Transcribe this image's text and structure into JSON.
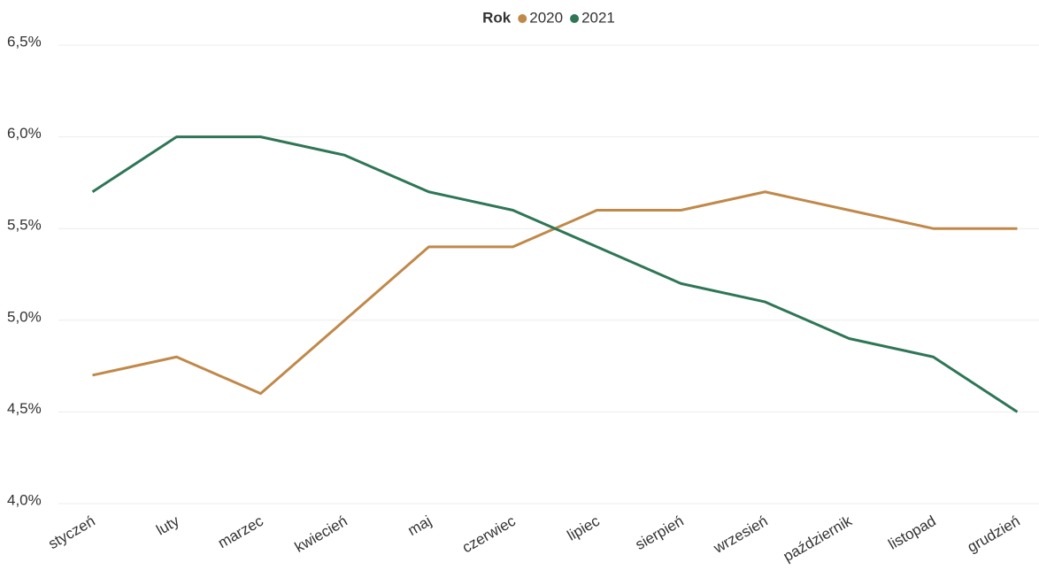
{
  "chart_data": {
    "type": "line",
    "legend_title": "Rok",
    "legend": "top",
    "grid": true,
    "categories": [
      "styczeń",
      "luty",
      "marzec",
      "kwiecień",
      "maj",
      "czerwiec",
      "lipiec",
      "sierpień",
      "wrzesień",
      "październik",
      "listopad",
      "grudzień"
    ],
    "series": [
      {
        "name": "2020",
        "color": "#c0894a",
        "values": [
          4.7,
          4.8,
          4.6,
          5.0,
          5.4,
          5.4,
          5.6,
          5.6,
          5.7,
          5.6,
          5.5,
          5.5
        ]
      },
      {
        "name": "2021",
        "color": "#2e7656",
        "values": [
          5.7,
          6.0,
          6.0,
          5.9,
          5.7,
          5.6,
          5.4,
          5.2,
          5.1,
          4.9,
          4.8,
          4.5
        ]
      }
    ],
    "ylim": [
      4.0,
      6.5
    ],
    "yticks": [
      {
        "value": 4.0,
        "label": "4,0%"
      },
      {
        "value": 4.5,
        "label": "4,5%"
      },
      {
        "value": 5.0,
        "label": "5,0%"
      },
      {
        "value": 5.5,
        "label": "5,5%"
      },
      {
        "value": 6.0,
        "label": "6,0%"
      },
      {
        "value": 6.5,
        "label": "6,5%"
      }
    ]
  }
}
